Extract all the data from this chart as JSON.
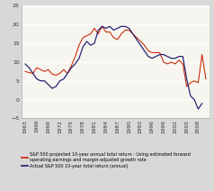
{
  "title": "",
  "xlabel": "",
  "ylabel": "",
  "ylim": [
    -5,
    25
  ],
  "yticks": [
    -5,
    0,
    5,
    10,
    15,
    20,
    25
  ],
  "outer_bg": "#d8d8d8",
  "plot_bg_color": "#f7f5ef",
  "grid_color": "#ffffff",
  "red_color": "#cc2200",
  "blue_color": "#1a1a6e",
  "legend_red": "S&P 500 projected 10-year annual total return - Using estimated forward\noperating earnings and margin-adjusted growth rate",
  "legend_blue": "Actual S&P 500 10-year total return (annual)",
  "years": [
    1963,
    1964,
    1965,
    1966,
    1967,
    1968,
    1969,
    1970,
    1971,
    1972,
    1973,
    1974,
    1975,
    1976,
    1977,
    1978,
    1979,
    1980,
    1981,
    1982,
    1983,
    1984,
    1985,
    1986,
    1987,
    1988,
    1989,
    1990,
    1991,
    1992,
    1993,
    1994,
    1995,
    1996,
    1997,
    1998,
    1999,
    2000,
    2001,
    2002,
    2003,
    2004,
    2005,
    2006,
    2007,
    2008,
    2009,
    2010
  ],
  "red_values": [
    7.5,
    7.2,
    7.0,
    8.5,
    8.0,
    7.5,
    8.0,
    6.8,
    6.5,
    7.0,
    8.0,
    7.0,
    9.0,
    11.5,
    14.5,
    16.5,
    17.0,
    17.5,
    19.0,
    17.5,
    19.5,
    18.0,
    18.0,
    16.5,
    16.0,
    17.5,
    18.5,
    18.5,
    17.5,
    16.5,
    15.5,
    14.5,
    13.0,
    12.5,
    12.5,
    12.5,
    10.0,
    9.5,
    10.0,
    9.5,
    10.5,
    9.5,
    3.5,
    4.5,
    5.0,
    4.5,
    12.0,
    5.5
  ],
  "blue_values": [
    9.5,
    8.5,
    7.0,
    5.5,
    5.0,
    5.0,
    4.0,
    3.0,
    3.5,
    5.0,
    5.5,
    7.0,
    8.5,
    9.5,
    11.0,
    14.0,
    15.5,
    14.5,
    15.0,
    18.5,
    19.5,
    19.0,
    19.5,
    18.5,
    19.0,
    19.5,
    19.5,
    19.0,
    17.5,
    16.0,
    14.5,
    13.0,
    11.5,
    11.0,
    11.5,
    12.0,
    12.0,
    11.5,
    11.0,
    11.0,
    11.5,
    11.5,
    5.5,
    1.0,
    0.0,
    -2.5,
    -1.0,
    null
  ],
  "xtick_years": [
    1963,
    1966,
    1969,
    1972,
    1975,
    1978,
    1981,
    1984,
    1987,
    1990,
    1993,
    1996,
    1999,
    2002,
    2005,
    2008
  ]
}
